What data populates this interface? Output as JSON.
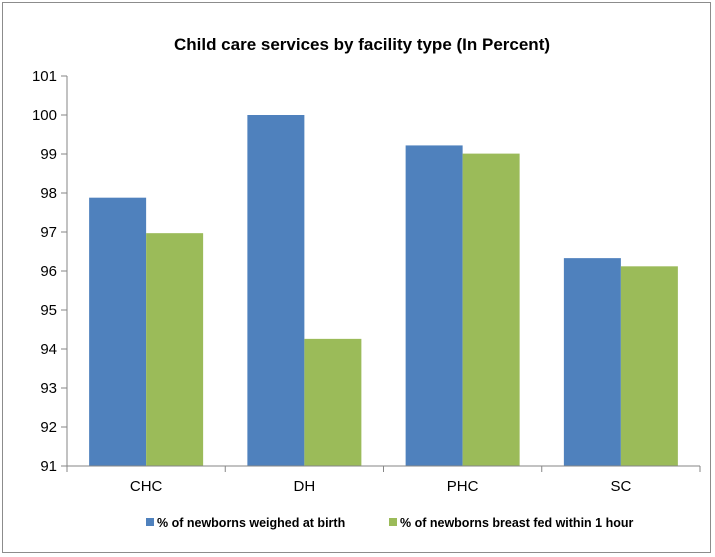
{
  "chart_data": {
    "type": "bar",
    "title": "Child care services by facility type (In Percent)",
    "xlabel": "",
    "ylabel": "",
    "categories": [
      "CHC",
      "DH",
      "PHC",
      "SC"
    ],
    "series": [
      {
        "name": "% of newborns weighed at birth",
        "color": "#4f81bd",
        "values": [
          97.88,
          100.0,
          99.22,
          96.33
        ]
      },
      {
        "name": "% of newborns breast fed within 1 hour",
        "color": "#9bbb59",
        "values": [
          96.97,
          94.26,
          99.01,
          96.12
        ]
      }
    ],
    "ylim": [
      91,
      101
    ],
    "yticks": [
      91,
      92,
      93,
      94,
      95,
      96,
      97,
      98,
      99,
      100,
      101
    ],
    "grid": false,
    "legend_position": "bottom"
  }
}
